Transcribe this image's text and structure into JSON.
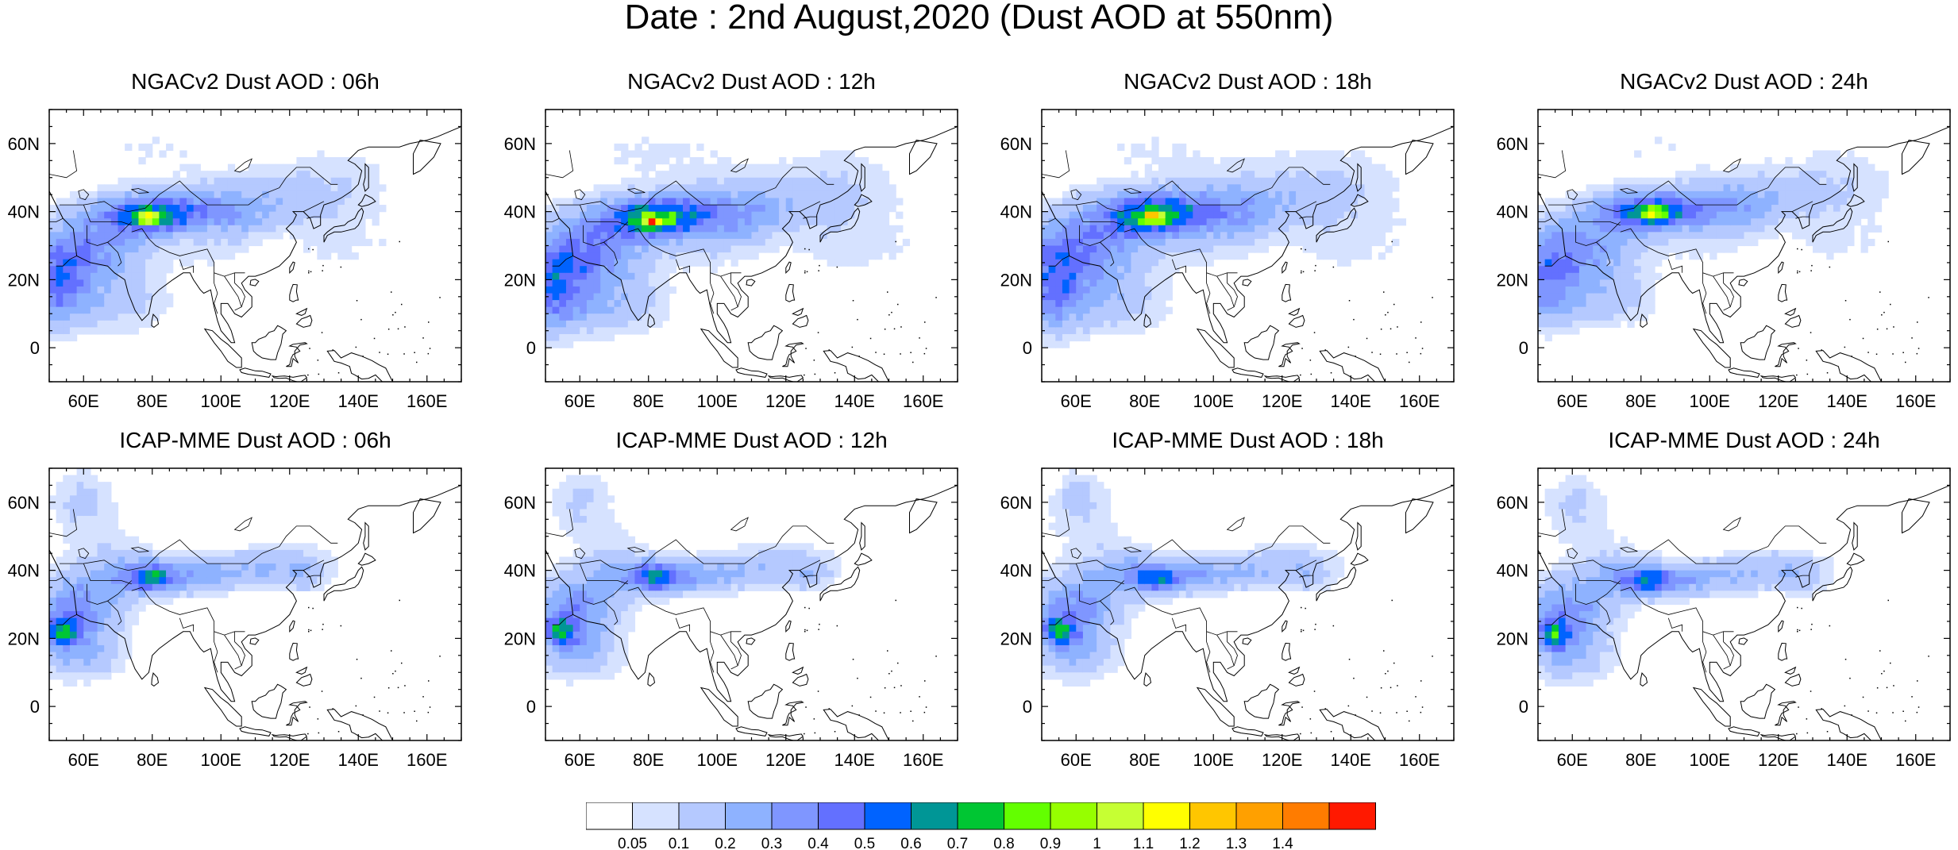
{
  "title": "Date : 2nd August,2020 (Dust AOD at 550nm)",
  "lon_ticks": [
    "60E",
    "80E",
    "100E",
    "120E",
    "140E",
    "160E"
  ],
  "lat_ticks": [
    "60N",
    "40N",
    "20N",
    "0"
  ],
  "lon_values": [
    60,
    80,
    100,
    120,
    140,
    160
  ],
  "lat_values": [
    60,
    40,
    20,
    0
  ],
  "extent": {
    "lon_min": 50,
    "lon_max": 170,
    "lat_min": -10,
    "lat_max": 70
  },
  "panels": [
    {
      "title": "NGACv2 Dust AOD : 06h",
      "model": "NGACv2",
      "hour": "06h"
    },
    {
      "title": "NGACv2 Dust AOD : 12h",
      "model": "NGACv2",
      "hour": "12h"
    },
    {
      "title": "NGACv2 Dust AOD : 18h",
      "model": "NGACv2",
      "hour": "18h"
    },
    {
      "title": "NGACv2 Dust AOD : 24h",
      "model": "NGACv2",
      "hour": "24h"
    },
    {
      "title": "ICAP-MME Dust AOD : 06h",
      "model": "ICAP-MME",
      "hour": "06h"
    },
    {
      "title": "ICAP-MME Dust AOD : 12h",
      "model": "ICAP-MME",
      "hour": "12h"
    },
    {
      "title": "ICAP-MME Dust AOD : 18h",
      "model": "ICAP-MME",
      "hour": "18h"
    },
    {
      "title": "ICAP-MME Dust AOD : 24h",
      "model": "ICAP-MME",
      "hour": "24h"
    }
  ],
  "colorbar": {
    "labels": [
      "0.05",
      "0.1",
      "0.2",
      "0.3",
      "0.4",
      "0.5",
      "0.6",
      "0.7",
      "0.8",
      "0.9",
      "1",
      "1.1",
      "1.2",
      "1.3",
      "1.4"
    ],
    "colors": [
      "#ffffff",
      "#d6e2ff",
      "#b5c9ff",
      "#8eb2ff",
      "#7f96ff",
      "#6370ff",
      "#0063ff",
      "#009696",
      "#00c633",
      "#63ff00",
      "#96ff00",
      "#c6ff33",
      "#ffff00",
      "#ffc600",
      "#ffa000",
      "#ff7c00",
      "#ff1900"
    ]
  }
}
